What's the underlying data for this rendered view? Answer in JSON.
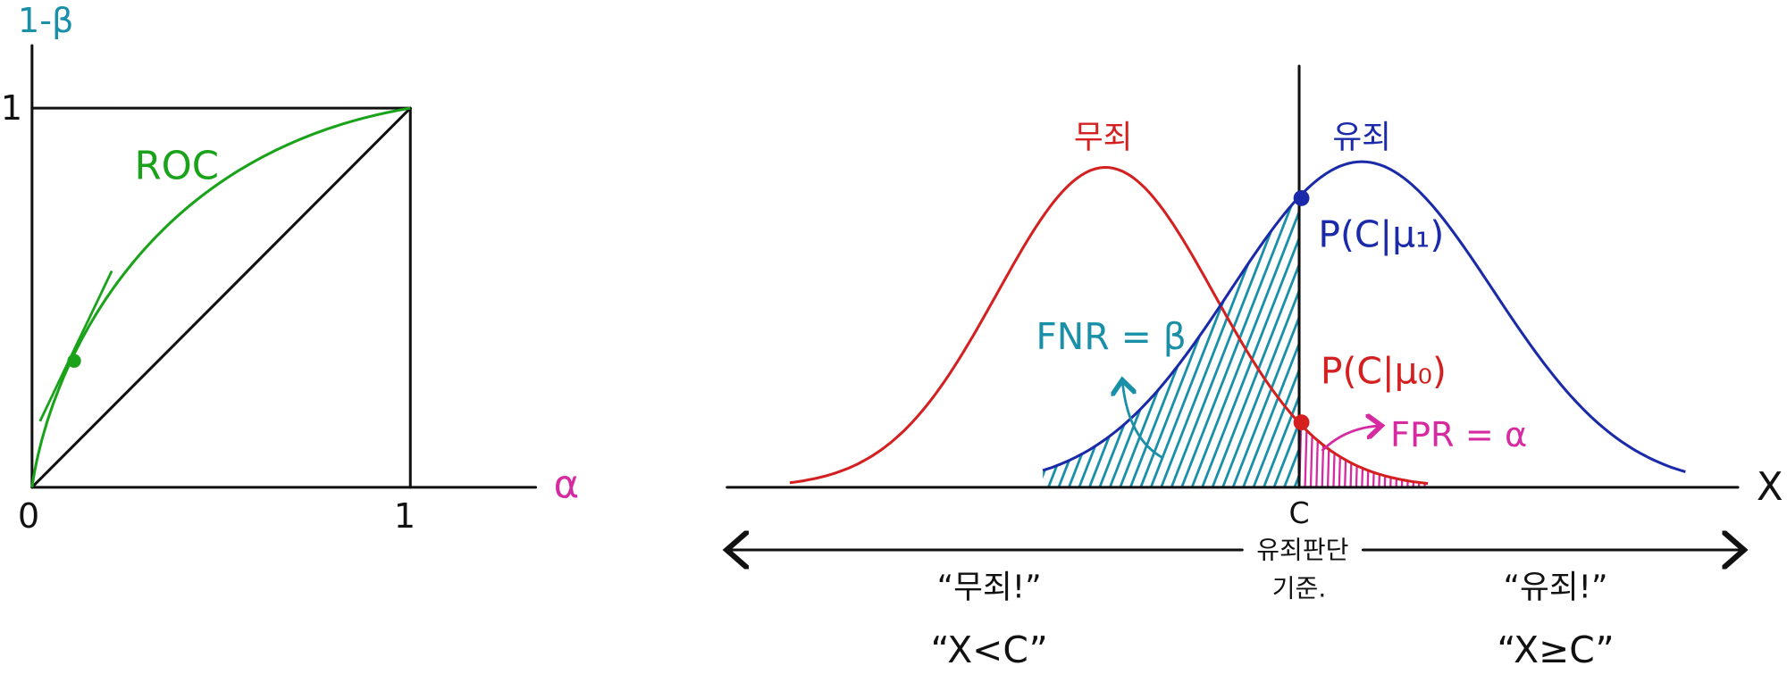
{
  "roc_panel": {
    "y_axis_label": "1-β",
    "y_tick_label": "1",
    "origin_label": "0",
    "x_tick_label": "1",
    "x_axis_label": "α",
    "curve_label": "ROC"
  },
  "distribution_panel": {
    "null_label": "무죄",
    "alt_label": "유죄",
    "alt_density_label": "P(C|μ₁)",
    "null_density_label": "P(C|μ₀)",
    "fnr_label": "FNR = β",
    "fpr_label": "FPR = α",
    "x_axis_label": "X",
    "cutoff_label": "C",
    "criterion": {
      "line1": "유죄판단",
      "line2": "기준."
    },
    "left_decision": {
      "verdict": "“무죄!”",
      "rule": "“X<C”"
    },
    "right_decision": {
      "verdict": "“유죄!”",
      "rule": "“X≥C”"
    }
  }
}
